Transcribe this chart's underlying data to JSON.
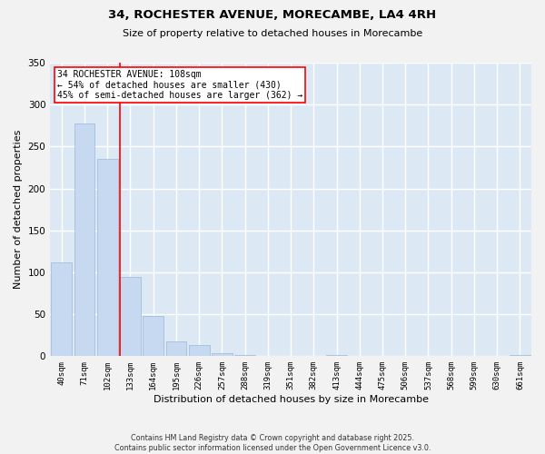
{
  "title_line1": "34, ROCHESTER AVENUE, MORECAMBE, LA4 4RH",
  "title_line2": "Size of property relative to detached houses in Morecambe",
  "xlabel": "Distribution of detached houses by size in Morecambe",
  "ylabel": "Number of detached properties",
  "categories": [
    "40sqm",
    "71sqm",
    "102sqm",
    "133sqm",
    "164sqm",
    "195sqm",
    "226sqm",
    "257sqm",
    "288sqm",
    "319sqm",
    "351sqm",
    "382sqm",
    "413sqm",
    "444sqm",
    "475sqm",
    "506sqm",
    "537sqm",
    "568sqm",
    "599sqm",
    "630sqm",
    "661sqm"
  ],
  "values": [
    112,
    277,
    235,
    95,
    48,
    18,
    13,
    4,
    1,
    0,
    0,
    0,
    1,
    0,
    0,
    0,
    0,
    0,
    0,
    0,
    1
  ],
  "bar_color": "#c6d9f0",
  "bar_edge_color": "#9ab8d8",
  "background_color": "#dce9f5",
  "grid_color": "#ffffff",
  "red_line_x": 2.55,
  "annotation_title": "34 ROCHESTER AVENUE: 108sqm",
  "annotation_line1": "← 54% of detached houses are smaller (430)",
  "annotation_line2": "45% of semi-detached houses are larger (362) →",
  "ylim": [
    0,
    350
  ],
  "yticks": [
    0,
    50,
    100,
    150,
    200,
    250,
    300,
    350
  ],
  "fig_bg": "#f2f2f2",
  "footnote1": "Contains HM Land Registry data © Crown copyright and database right 2025.",
  "footnote2": "Contains public sector information licensed under the Open Government Licence v3.0."
}
